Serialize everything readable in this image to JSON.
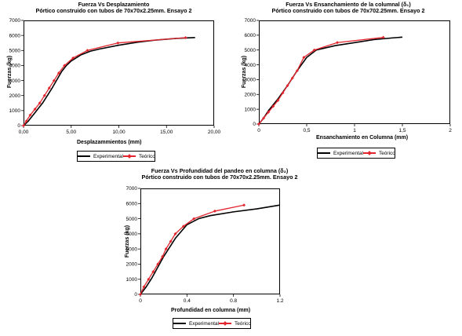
{
  "chart_data": [
    {
      "type": "line",
      "title": "Fuerza Vs Desplazamiento",
      "subtitle": "Pórtico construido con tubos de 70x70x2.25mm. Ensayo 2",
      "xlabel": "Desplazammientos (mm)",
      "ylabel": "Fuerzas (kg)",
      "xlim": [
        0,
        20
      ],
      "ylim": [
        0,
        7000
      ],
      "xticks": [
        "0,00",
        "5,00",
        "10,00",
        "15,00",
        "20,00"
      ],
      "xtick_values": [
        0,
        5,
        10,
        15,
        20
      ],
      "yticks": [
        "0",
        "1000",
        "2000",
        "3000",
        "4000",
        "5000",
        "6000",
        "7000"
      ],
      "ytick_values": [
        0,
        1000,
        2000,
        3000,
        4000,
        5000,
        6000,
        7000
      ],
      "series": [
        {
          "name": "Experimental",
          "color": "#000000",
          "x": [
            0,
            0.5,
            1,
            2,
            3,
            4,
            4.5,
            5,
            6,
            7,
            8,
            10,
            12,
            14,
            16,
            18
          ],
          "y": [
            0,
            300,
            700,
            1500,
            2500,
            3600,
            4000,
            4300,
            4700,
            4950,
            5100,
            5350,
            5550,
            5700,
            5800,
            5860
          ]
        },
        {
          "name": "Teórico",
          "color": "#e3252e",
          "marker": "diamond",
          "x": [
            0,
            0.3,
            0.7,
            1.2,
            1.7,
            2.2,
            2.7,
            3.2,
            3.7,
            4.3,
            5.2,
            6.7,
            9.9,
            17
          ],
          "y": [
            0,
            300,
            700,
            1100,
            1500,
            2000,
            2500,
            3000,
            3500,
            4000,
            4500,
            5000,
            5500,
            5850
          ]
        }
      ],
      "legend": "bottom"
    },
    {
      "type": "line",
      "title": "Fuerza Vs Ensanchamiento de la columnal (δ₁)",
      "subtitle": "Pórtico construido con tubos de  70x702.25mm. Ensayo 2",
      "xlabel": "Ensanchamiento en Columna (mm)",
      "ylabel": "Fuerzas (kg)",
      "xlim": [
        0,
        2
      ],
      "ylim": [
        0,
        7000
      ],
      "xticks": [
        "0",
        "0,5",
        "1",
        "1,5",
        "2"
      ],
      "xtick_values": [
        0,
        0.5,
        1,
        1.5,
        2
      ],
      "yticks": [
        "0",
        "1000",
        "2000",
        "3000",
        "4000",
        "5000",
        "6000",
        "7000"
      ],
      "ytick_values": [
        0,
        1000,
        2000,
        3000,
        4000,
        5000,
        6000,
        7000
      ],
      "series": [
        {
          "name": "Experimental",
          "color": "#000000",
          "x": [
            0,
            0.05,
            0.1,
            0.2,
            0.3,
            0.4,
            0.5,
            0.6,
            0.8,
            1.0,
            1.2,
            1.4,
            1.5
          ],
          "y": [
            0,
            400,
            900,
            1700,
            2600,
            3600,
            4500,
            5000,
            5300,
            5500,
            5700,
            5820,
            5870
          ]
        },
        {
          "name": "Teórico",
          "color": "#e3252e",
          "marker": "diamond",
          "x": [
            0,
            0.05,
            0.1,
            0.15,
            0.2,
            0.25,
            0.3,
            0.35,
            0.4,
            0.47,
            0.58,
            0.82,
            1.3
          ],
          "y": [
            0,
            400,
            800,
            1200,
            1600,
            2100,
            2600,
            3100,
            3600,
            4500,
            5000,
            5500,
            5850
          ]
        }
      ],
      "legend": "bottom"
    },
    {
      "type": "line",
      "title": "Fuerza Vs Profundidad del pandeo en columna  (δ₂)",
      "subtitle": "Pórtico construido con tubos de 70x70x2.25mm. Ensayo 2",
      "xlabel": "Profundidad en columna (mm)",
      "ylabel": "Fuerzas (kg)",
      "xlim": [
        0,
        1.2
      ],
      "ylim": [
        0,
        7000
      ],
      "xticks": [
        "0",
        "0.4",
        "0.8",
        "1.2"
      ],
      "xtick_values": [
        0,
        0.4,
        0.8,
        1.2
      ],
      "yticks": [
        "0",
        "1000",
        "2000",
        "3000",
        "4000",
        "5000",
        "6000",
        "7000"
      ],
      "ytick_values": [
        0,
        1000,
        2000,
        3000,
        4000,
        5000,
        6000,
        7000
      ],
      "series": [
        {
          "name": "Experimental",
          "color": "#000000",
          "x": [
            0,
            0.05,
            0.1,
            0.2,
            0.3,
            0.4,
            0.5,
            0.6,
            0.8,
            1.0,
            1.2
          ],
          "y": [
            0,
            500,
            1100,
            2500,
            3700,
            4600,
            5000,
            5200,
            5450,
            5650,
            5900
          ]
        },
        {
          "name": "Teórico",
          "color": "#e3252e",
          "marker": "diamond",
          "x": [
            0,
            0.03,
            0.07,
            0.11,
            0.15,
            0.19,
            0.22,
            0.26,
            0.3,
            0.37,
            0.46,
            0.64,
            0.89
          ],
          "y": [
            0,
            500,
            1000,
            1500,
            2000,
            2500,
            3000,
            3500,
            4000,
            4500,
            5000,
            5500,
            5900
          ]
        }
      ],
      "legend": "bottom"
    }
  ]
}
